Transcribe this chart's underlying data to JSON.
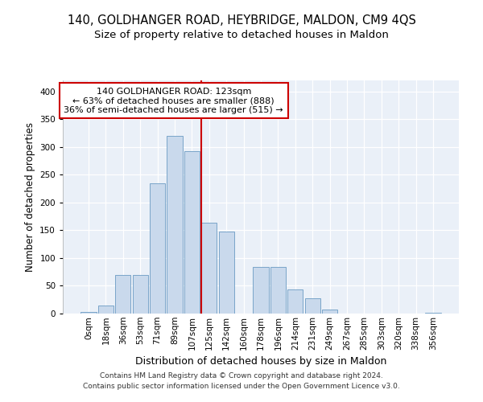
{
  "title1": "140, GOLDHANGER ROAD, HEYBRIDGE, MALDON, CM9 4QS",
  "title2": "Size of property relative to detached houses in Maldon",
  "xlabel": "Distribution of detached houses by size in Maldon",
  "ylabel": "Number of detached properties",
  "bar_labels": [
    "0sqm",
    "18sqm",
    "36sqm",
    "53sqm",
    "71sqm",
    "89sqm",
    "107sqm",
    "125sqm",
    "142sqm",
    "160sqm",
    "178sqm",
    "196sqm",
    "214sqm",
    "231sqm",
    "249sqm",
    "267sqm",
    "285sqm",
    "303sqm",
    "320sqm",
    "338sqm",
    "356sqm"
  ],
  "bar_heights": [
    3,
    15,
    70,
    70,
    235,
    320,
    293,
    163,
    148,
    0,
    84,
    84,
    43,
    28,
    7,
    0,
    0,
    0,
    0,
    0,
    2
  ],
  "bar_color": "#c9d9ec",
  "bar_edge_color": "#6a9bc3",
  "vline_x": 7.0,
  "vline_color": "#cc0000",
  "annotation_text": "140 GOLDHANGER ROAD: 123sqm\n← 63% of detached houses are smaller (888)\n36% of semi-detached houses are larger (515) →",
  "annotation_box_edgecolor": "#cc0000",
  "ylim": [
    0,
    420
  ],
  "yticks": [
    0,
    50,
    100,
    150,
    200,
    250,
    300,
    350,
    400
  ],
  "background_color": "#eaf0f8",
  "footer_line1": "Contains HM Land Registry data © Crown copyright and database right 2024.",
  "footer_line2": "Contains public sector information licensed under the Open Government Licence v3.0.",
  "title1_fontsize": 10.5,
  "title2_fontsize": 9.5,
  "xlabel_fontsize": 9,
  "ylabel_fontsize": 8.5,
  "tick_fontsize": 7.5,
  "annotation_fontsize": 8,
  "footer_fontsize": 6.5
}
